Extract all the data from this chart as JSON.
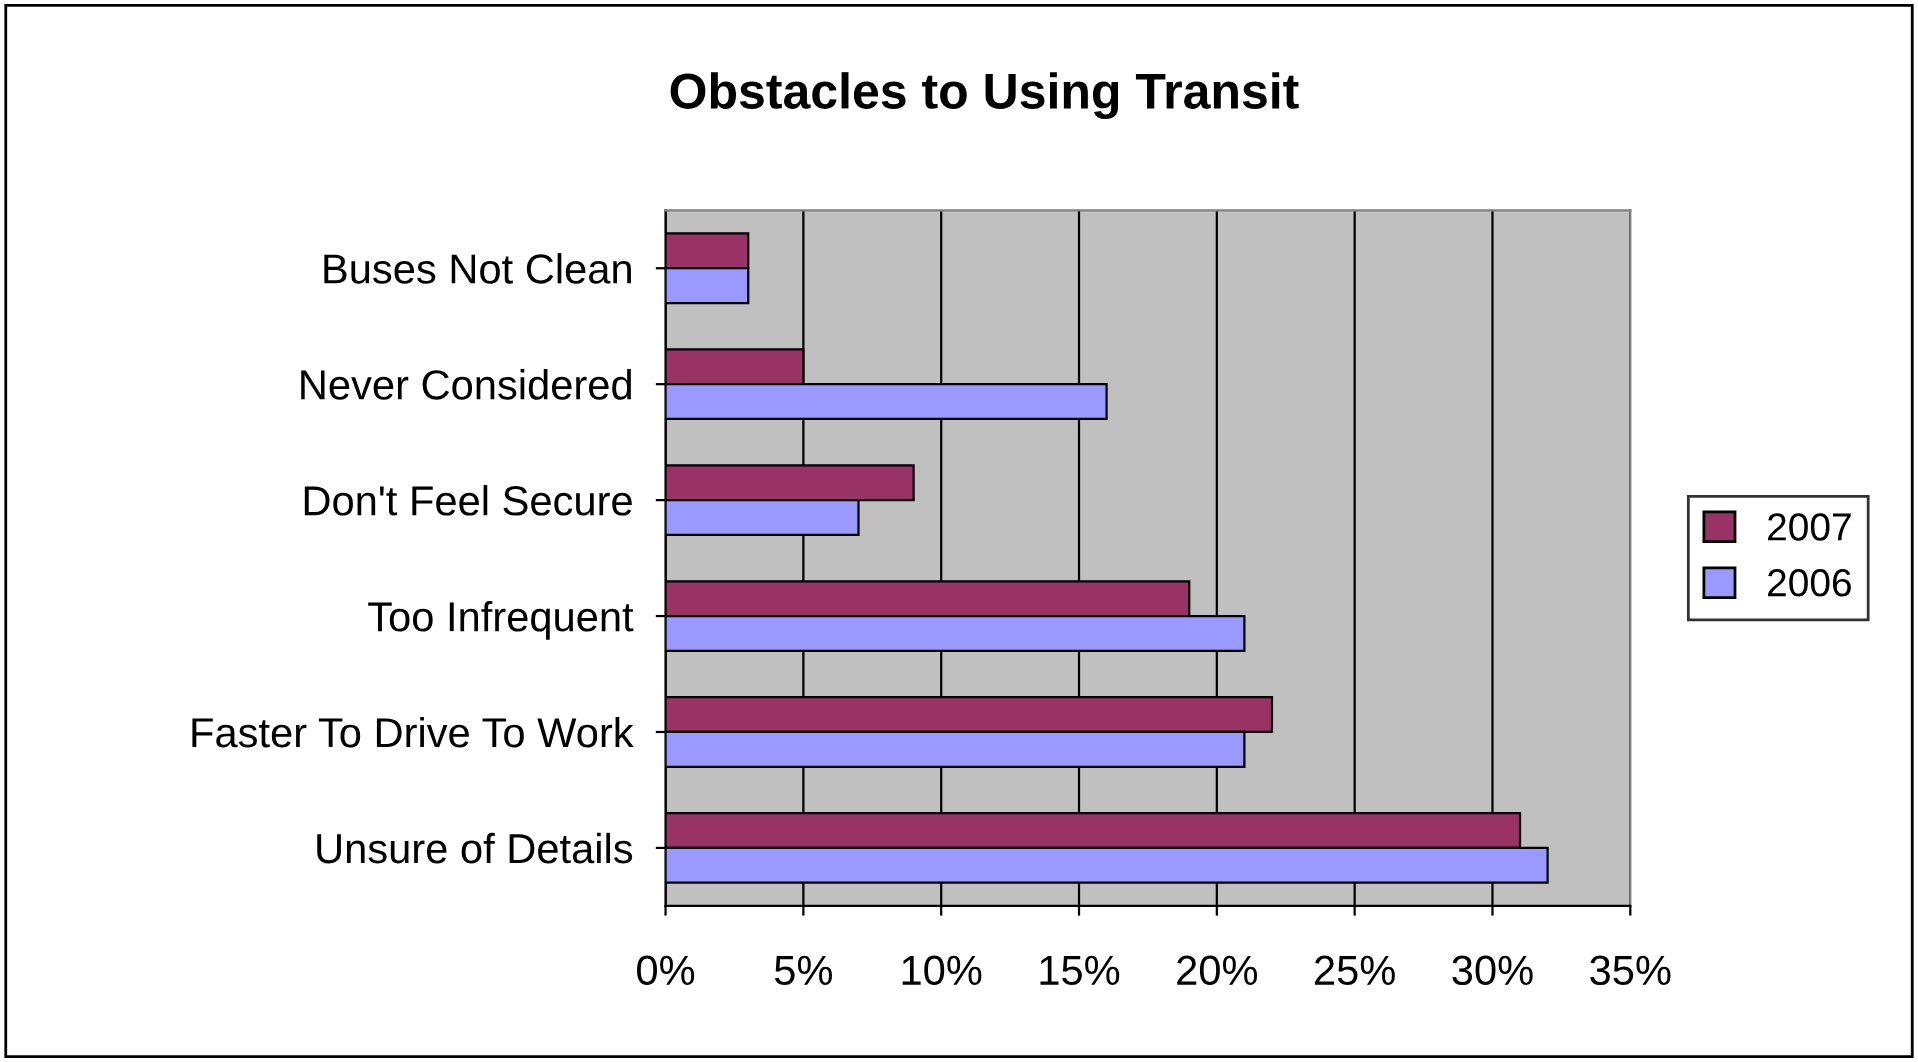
{
  "chart_data": {
    "type": "bar",
    "orientation": "horizontal",
    "title": "Obstacles to Using Transit",
    "categories": [
      "Buses Not Clean",
      "Never Considered",
      "Don't Feel Secure",
      "Too Infrequent",
      "Faster To Drive To Work",
      "Unsure of Details"
    ],
    "series": [
      {
        "name": "2007",
        "color": "#993366",
        "values": [
          3,
          5,
          9,
          19,
          22,
          31
        ]
      },
      {
        "name": "2006",
        "color": "#9999ff",
        "values": [
          3,
          16,
          7,
          21,
          21,
          32
        ]
      }
    ],
    "xlim": [
      0,
      35
    ],
    "xticks": [
      {
        "value": 0,
        "label": "0%"
      },
      {
        "value": 5,
        "label": "5%"
      },
      {
        "value": 10,
        "label": "10%"
      },
      {
        "value": 15,
        "label": "15%"
      },
      {
        "value": 20,
        "label": "20%"
      },
      {
        "value": 25,
        "label": "25%"
      },
      {
        "value": 30,
        "label": "30%"
      },
      {
        "value": 35,
        "label": "35%"
      }
    ],
    "grid": "x",
    "legend": "right"
  }
}
